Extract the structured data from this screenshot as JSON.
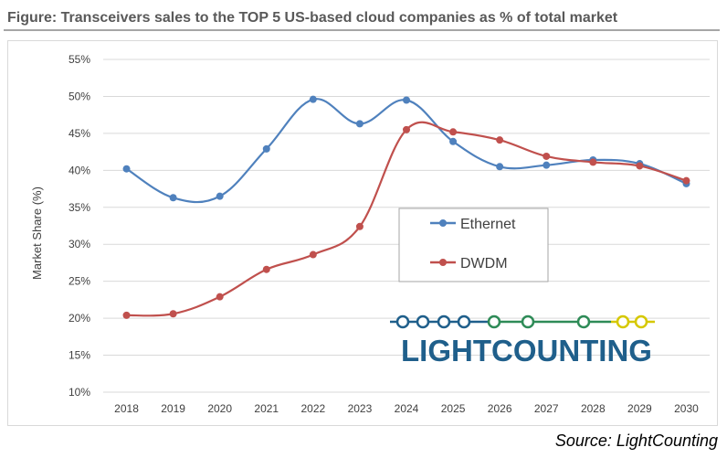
{
  "title": "Figure: Transceivers sales to the TOP 5 US-based cloud companies as % of total market",
  "source": "Source: LightCounting",
  "logo": {
    "light": "LIGHT",
    "counting": "COUNTING"
  },
  "colors": {
    "ethernet": "#4f81bd",
    "dwdm": "#c0504d",
    "grid": "#d9d9d9",
    "logo_blue": "#1f5f8b",
    "logo_green": "#2e8b57",
    "logo_yellow": "#d6c800"
  },
  "chart_data": {
    "type": "line",
    "title": "",
    "xlabel": "",
    "ylabel": "Market Share (%)",
    "categories": [
      "2018",
      "2019",
      "2020",
      "2021",
      "2022",
      "2023",
      "2024",
      "2025",
      "2026",
      "2027",
      "2028",
      "2029",
      "2030"
    ],
    "yticks": [
      "10%",
      "15%",
      "20%",
      "25%",
      "30%",
      "35%",
      "40%",
      "45%",
      "50%",
      "55%"
    ],
    "ylim": [
      10,
      55
    ],
    "grid": true,
    "legend_position": "center-right",
    "series": [
      {
        "name": "Ethernet",
        "values": [
          40.2,
          36.3,
          36.5,
          42.9,
          49.6,
          46.3,
          49.5,
          43.9,
          40.5,
          40.7,
          41.4,
          40.9,
          38.2
        ]
      },
      {
        "name": "DWDM",
        "values": [
          20.4,
          20.6,
          22.9,
          26.6,
          28.6,
          32.4,
          45.5,
          45.2,
          44.1,
          41.9,
          41.1,
          40.6,
          38.6
        ]
      }
    ]
  }
}
